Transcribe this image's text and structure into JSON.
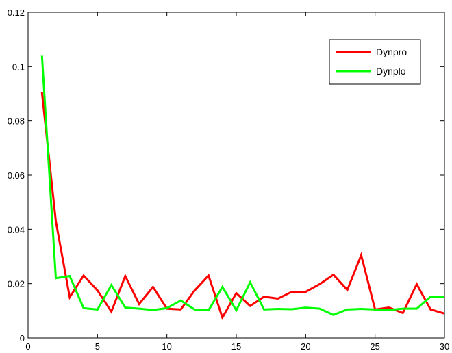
{
  "chart_data": {
    "type": "line",
    "title": "",
    "xlabel": "",
    "ylabel": "",
    "xlim": [
      0,
      30
    ],
    "ylim": [
      0,
      0.12
    ],
    "xticks": [
      0,
      5,
      10,
      15,
      20,
      25,
      30
    ],
    "yticks": [
      0,
      0.02,
      0.04,
      0.06,
      0.08,
      0.1,
      0.12
    ],
    "xtick_labels": [
      "0",
      "5",
      "10",
      "15",
      "20",
      "25",
      "30"
    ],
    "ytick_labels": [
      "0",
      "0.02",
      "0.04",
      "0.06",
      "0.08",
      "0.1",
      "0.12"
    ],
    "grid": false,
    "legend_position": "top-right",
    "x": [
      1,
      2,
      3,
      4,
      5,
      6,
      7,
      8,
      9,
      10,
      11,
      12,
      13,
      14,
      15,
      16,
      17,
      18,
      19,
      20,
      21,
      22,
      23,
      24,
      25,
      26,
      27,
      28,
      29,
      30
    ],
    "series": [
      {
        "name": "Dynpro",
        "color": "#ff0000",
        "values": [
          0.0905,
          0.043,
          0.015,
          0.023,
          0.0175,
          0.0097,
          0.0228,
          0.0125,
          0.0188,
          0.0108,
          0.0105,
          0.0175,
          0.023,
          0.0075,
          0.0165,
          0.0118,
          0.0152,
          0.0145,
          0.017,
          0.017,
          0.0198,
          0.0233,
          0.0177,
          0.0305,
          0.0105,
          0.0112,
          0.0092,
          0.0198,
          0.0105,
          0.009
        ]
      },
      {
        "name": "Dynplo",
        "color": "#00ff00",
        "values": [
          0.104,
          0.022,
          0.0228,
          0.011,
          0.0105,
          0.0195,
          0.0112,
          0.0108,
          0.0103,
          0.011,
          0.0138,
          0.0105,
          0.0102,
          0.0188,
          0.0102,
          0.0205,
          0.0105,
          0.0107,
          0.0106,
          0.0112,
          0.0108,
          0.0085,
          0.0105,
          0.0107,
          0.0105,
          0.0103,
          0.0108,
          0.0108,
          0.0152,
          0.0152
        ]
      }
    ]
  }
}
